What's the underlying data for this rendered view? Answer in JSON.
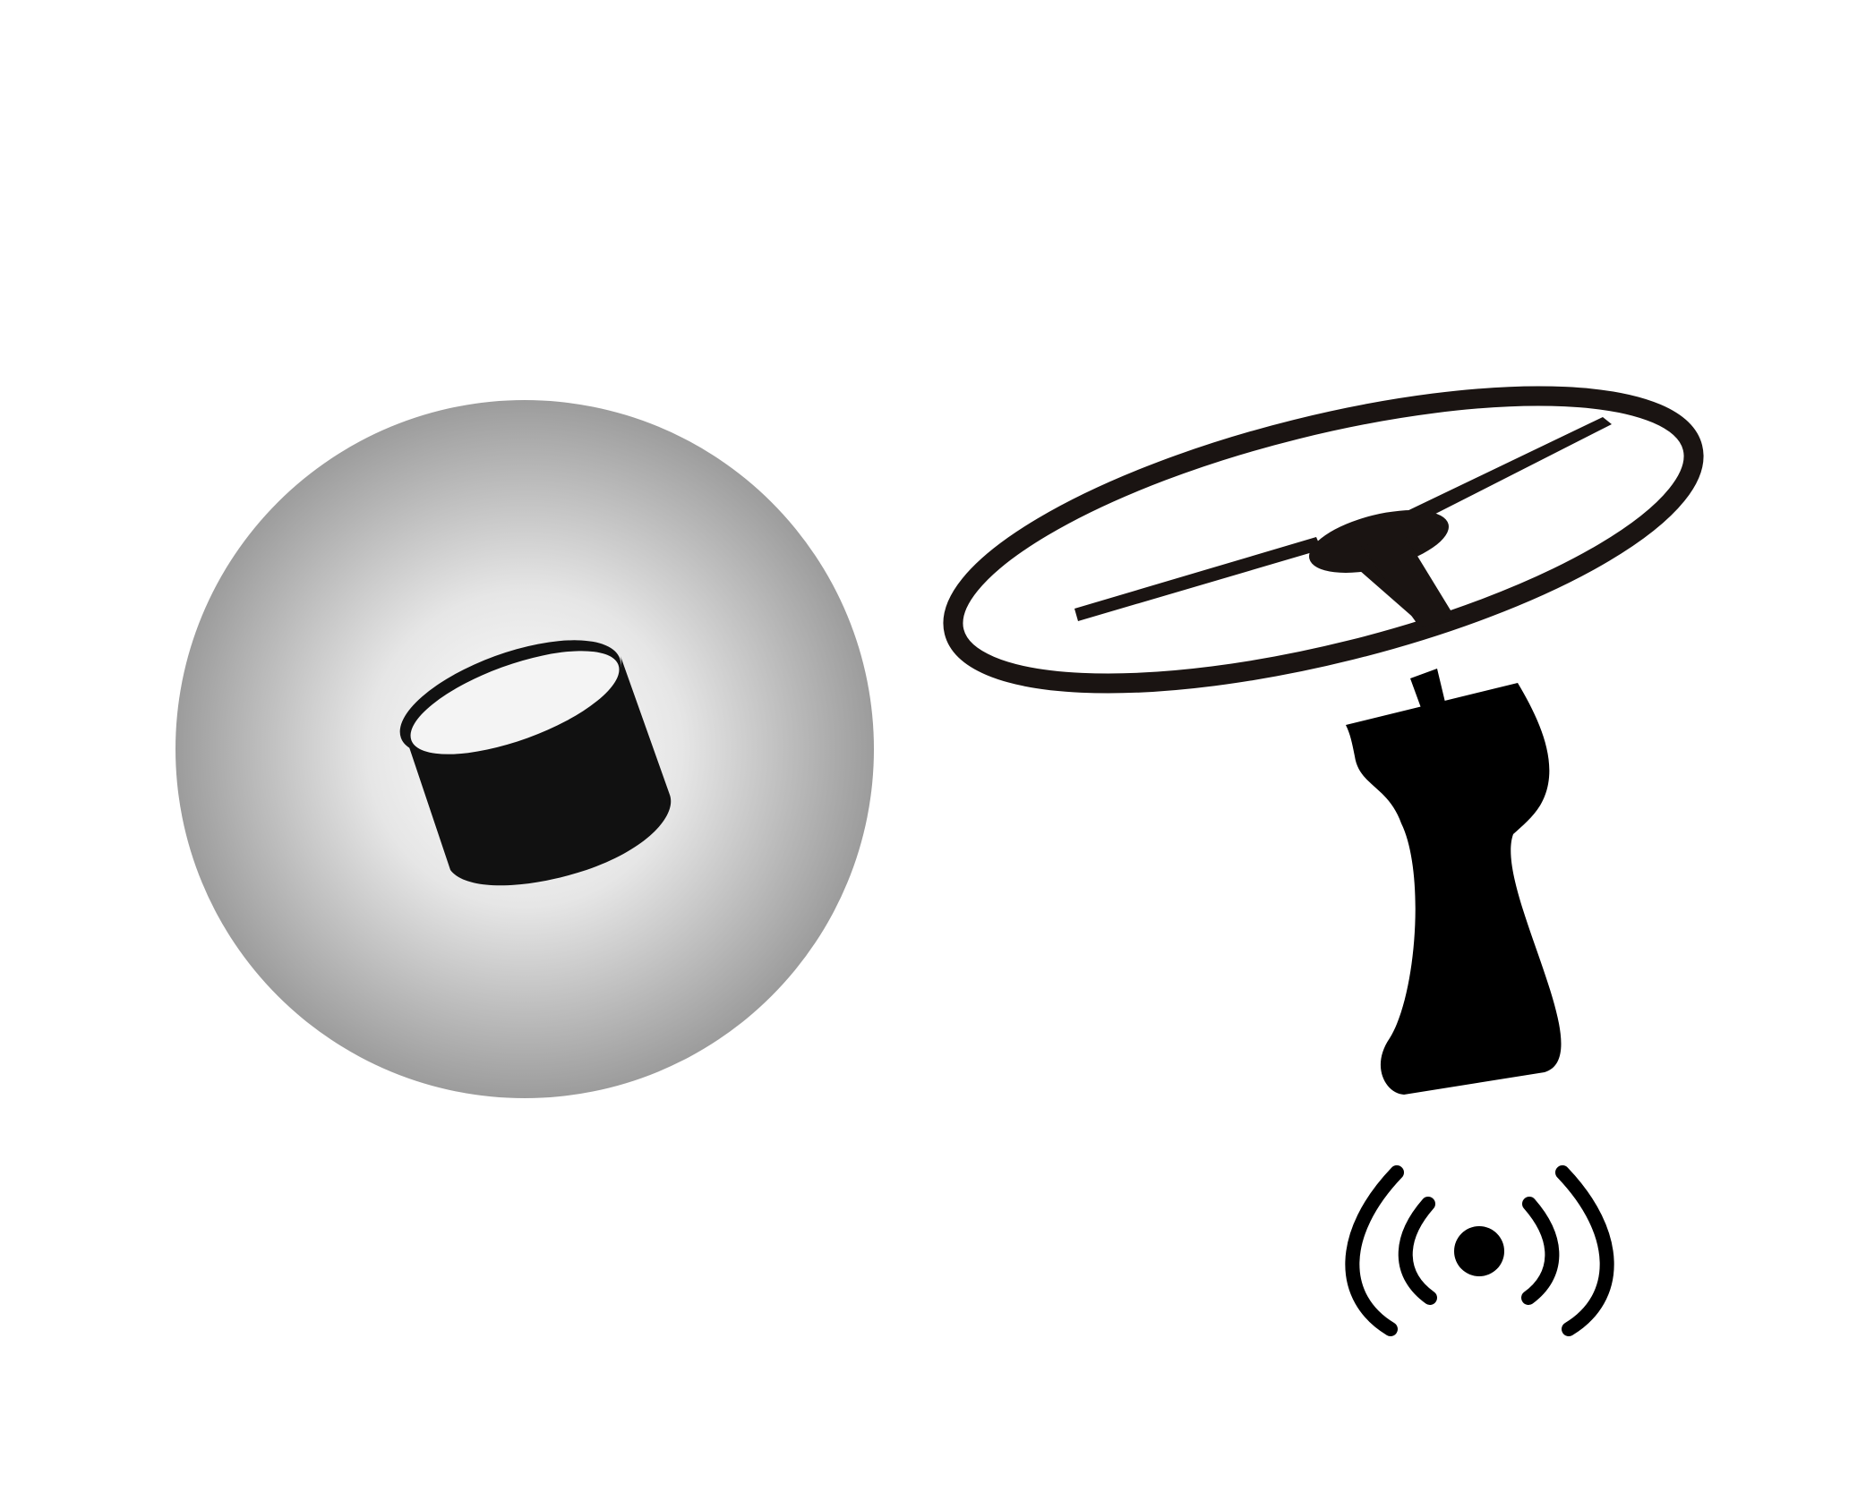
{
  "scene": {
    "background_color": "#ffffff",
    "sphere": {
      "icon": "sphere-with-cylinder-icon",
      "center_color": "#ffffff",
      "edge_color": "#9c9c9c",
      "inner_object_color": "#111111"
    },
    "rotor": {
      "icon": "rotor-ring-icon",
      "color": "#1a1412"
    },
    "handle": {
      "icon": "controller-handle-icon",
      "color": "#000000"
    },
    "signal": {
      "icon": "wireless-signal-icon",
      "color": "#000000"
    }
  }
}
